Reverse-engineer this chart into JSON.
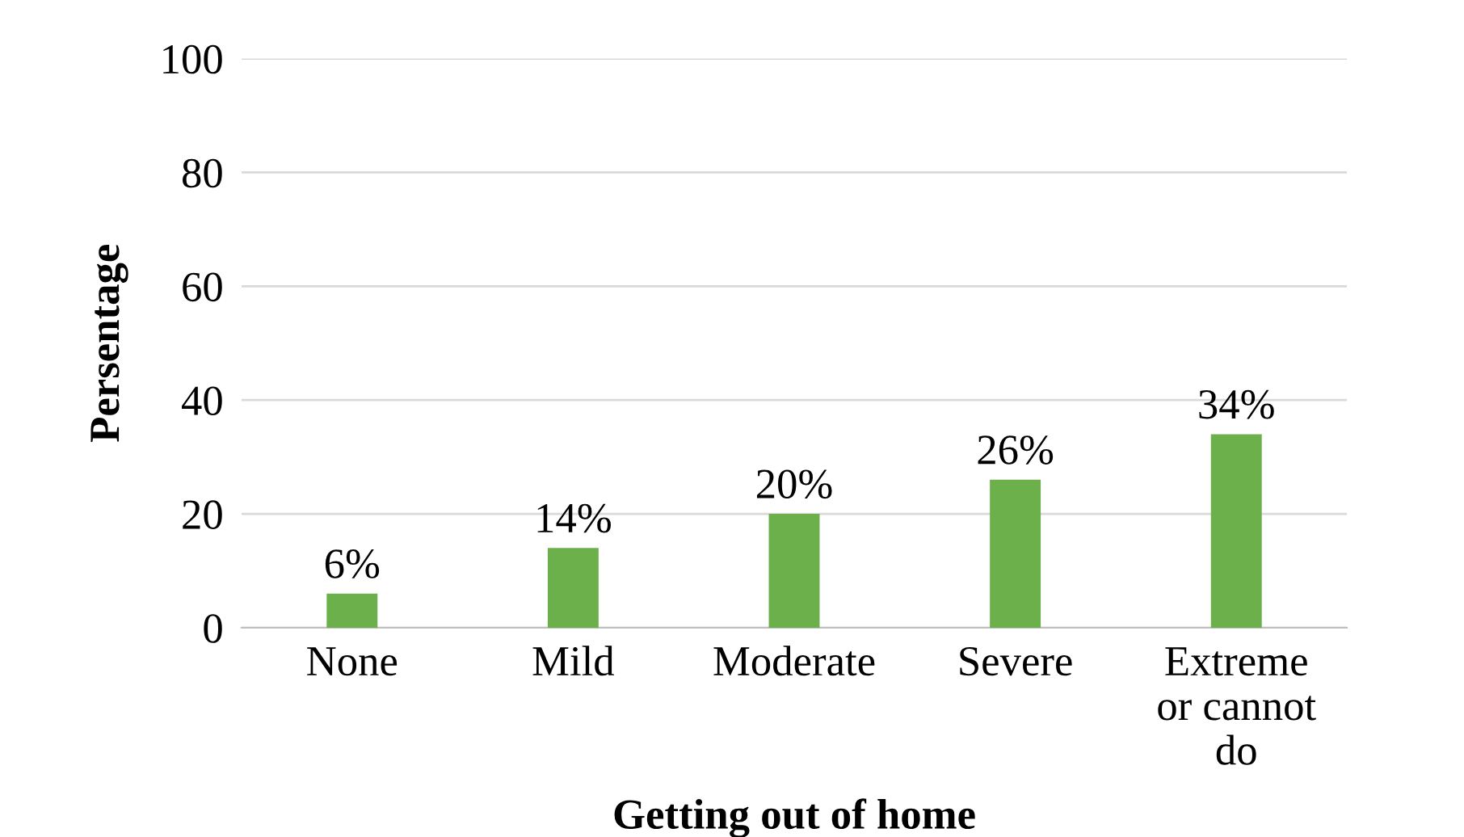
{
  "chart_data": {
    "type": "bar",
    "xlabel": "Getting out of home",
    "ylabel": "Persentage",
    "categories": [
      "None",
      "Mild",
      "Moderate",
      "Severe",
      "Extreme\nor cannot\ndo"
    ],
    "values": [
      6,
      14,
      20,
      26,
      34
    ],
    "color": "#6cb04c",
    "value_labels": [
      "6%",
      "14%",
      "20%",
      "26%",
      "34%"
    ],
    "ylim": [
      0,
      100
    ],
    "yticks": [
      0,
      20,
      40,
      60,
      80,
      100
    ],
    "grid": "y",
    "legend": false
  }
}
